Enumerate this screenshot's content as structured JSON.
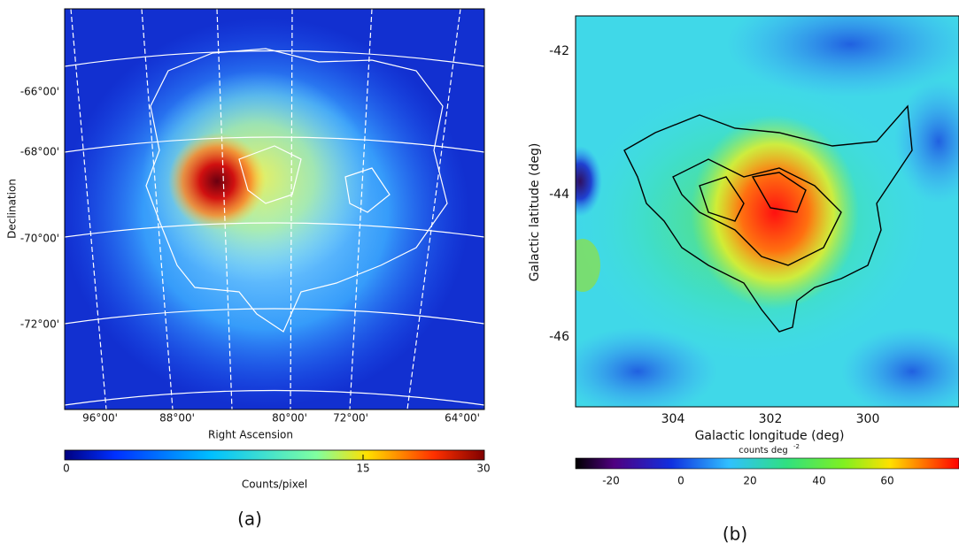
{
  "panel_a": {
    "y_axis_label": "Declination",
    "x_axis_label": "Right Ascension",
    "y_ticks": [
      "-66°00'",
      "-68°00'",
      "-70°00'",
      "-72°00'"
    ],
    "x_ticks": [
      "96°00'",
      "88°00'",
      "80°00'",
      "72°00'",
      "64°00'"
    ],
    "colorbar_ticks": [
      "0",
      "15",
      "30"
    ],
    "colorbar_label": "Counts/pixel",
    "caption": "(a)"
  },
  "panel_b": {
    "y_axis_label": "Galactic latitude (deg)",
    "x_axis_label": "Galactic longitude (deg)",
    "y_ticks": [
      "-42",
      "-44",
      "-46"
    ],
    "x_ticks": [
      "304",
      "302",
      "300"
    ],
    "colorbar_label": "counts deg",
    "colorbar_label_exponent": "-2",
    "colorbar_ticks": [
      "-20",
      "0",
      "20",
      "40",
      "60"
    ],
    "caption": "(b)"
  }
}
